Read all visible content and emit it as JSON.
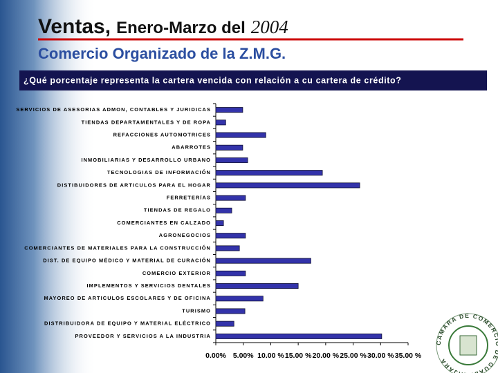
{
  "title_parts": [
    "Ventas,",
    "Enero-Marzo del",
    "2004"
  ],
  "subtitle": "Comercio Organizado de la Z.M.G.",
  "question": "¿Qué porcentaje representa la cartera vencida con relación a cu cartera de crédito?",
  "logo_text": "CAMARA DE COMERCIO DE GUADALAJARA",
  "chart_data": {
    "type": "bar",
    "orientation": "horizontal",
    "categories": [
      "SERVICIOS DE ASESORIAS ADMON, CONTABLES Y JURIDICAS",
      "TIENDAS DEPARTAMENTALES Y DE ROPA",
      "REFACCIONES AUTOMOTRICES",
      "ABARROTES",
      "INMOBILIARIAS Y DESARROLLO URBANO",
      "TECNOLOGIAS DE INFORMACIÓN",
      "DISTIBUIDORES DE ARTICULOS PARA EL HOGAR",
      "FERRETERÍAS",
      "TIENDAS DE REGALO",
      "COMERCIANTES EN CALZADO",
      "AGRONEGOCIOS",
      "COMERCIANTES DE MATERIALES PARA LA CONSTRUCCIÓN",
      "DIST. DE EQUIPO MÉDICO Y MATERIAL DE CURACIÓN",
      "COMERCIO EXTERIOR",
      "IMPLEMENTOS Y SERVICIOS DENTALES",
      "MAYOREO DE ARTICULOS ESCOLARES Y DE OFICINA",
      "TURISMO",
      "DISTRIBUIDORA DE EQUIPO Y MATERIAL ELÉCTRICO",
      "PROVEEDOR Y SERVICIOS A LA INDUSTRIA"
    ],
    "values": [
      4.9,
      1.8,
      9.1,
      4.9,
      5.8,
      19.4,
      26.2,
      5.4,
      2.9,
      1.4,
      5.4,
      4.3,
      17.3,
      5.4,
      15.0,
      8.6,
      5.3,
      3.3,
      30.2
    ],
    "color": "#3333aa",
    "xlim": [
      0,
      35
    ],
    "xticks": [
      {
        "value": 0,
        "label": "0.00%"
      },
      {
        "value": 5,
        "label": "5.00%"
      },
      {
        "value": 10,
        "label": "10.00 %"
      },
      {
        "value": 15,
        "label": "15.00 %"
      },
      {
        "value": 20,
        "label": "20.00 %"
      },
      {
        "value": 25,
        "label": "25.00 %"
      },
      {
        "value": 30,
        "label": "30.00 %"
      },
      {
        "value": 35,
        "label": "35.00 %"
      }
    ]
  }
}
